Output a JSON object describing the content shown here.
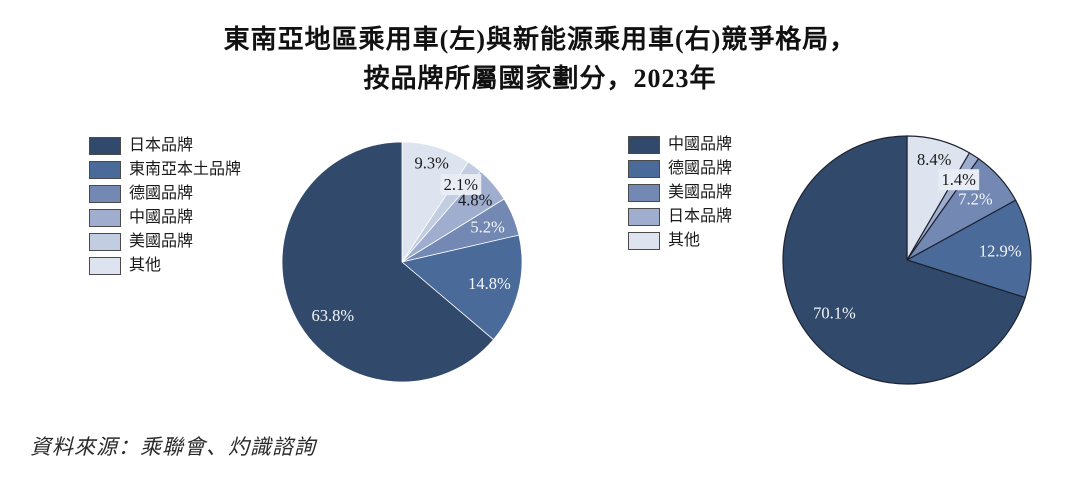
{
  "title": {
    "line1": "東南亞地區乘用車(左)與新能源乘用車(右)競爭格局，",
    "line2": "按品牌所屬國家劃分，2023年"
  },
  "source": {
    "text": "資料來源：乘聯會、灼識諮詢"
  },
  "palette": {
    "shade1_darkest": "#31496B",
    "shade2": "#4A6A99",
    "shade3": "#7388B3",
    "shade4": "#9FAECE",
    "shade5": "#C3CDE1",
    "shade6_lightest": "#DDE4EF",
    "label_box_bg": "#E8ECF5",
    "dark_label_text": "#1a1a1a",
    "light_label_text": "#F4F6FA"
  },
  "chart_data": [
    {
      "type": "pie",
      "name": "東南亞地區乘用車競爭格局，按品牌所屬國家劃分，2023年",
      "unit": "%",
      "start_angle": "12-oclock",
      "direction": "clockwise",
      "legend_position": "left",
      "legend_order": "reversed-slice-order",
      "radius": 120,
      "stroke": {
        "color": "#FFFFFF",
        "width": 0.8
      },
      "slices": [
        {
          "label": "其他",
          "value": 9.3,
          "text": "9.3%",
          "color": "#DDE4EF",
          "label_r": 0.86
        },
        {
          "label": "美國品牌",
          "value": 2.1,
          "text": "2.1%",
          "color": "#C3CDE1",
          "label_r": 0.81,
          "boxed": true
        },
        {
          "label": "中國品牌",
          "value": 4.8,
          "text": "4.8%",
          "color": "#9FAECE",
          "label_r": 0.8
        },
        {
          "label": "德國品牌",
          "value": 5.2,
          "text": "5.2%",
          "color": "#7388B3",
          "label_r": 0.77
        },
        {
          "label": "東南亞本土品牌",
          "value": 14.8,
          "text": "14.8%",
          "color": "#4A6A99",
          "label_r": 0.75
        },
        {
          "label": "日本品牌",
          "value": 63.8,
          "text": "63.8%",
          "color": "#31496B",
          "label_r": 0.73,
          "label_angle_offset": -13
        }
      ]
    },
    {
      "type": "pie",
      "name": "東南亞地區新能源乘用車競爭格局，按品牌所屬國家劃分，2023年",
      "unit": "%",
      "start_angle": "12-oclock",
      "direction": "clockwise",
      "legend_position": "left",
      "legend_order": "reversed-slice-order",
      "radius": 124,
      "stroke": {
        "color": "#1D2331",
        "width": 1.2
      },
      "slices": [
        {
          "label": "其他",
          "value": 8.4,
          "text": "8.4%",
          "color": "#DDE4EF",
          "label_r": 0.84
        },
        {
          "label": "日本品牌",
          "value": 1.4,
          "text": "1.4%",
          "color": "#9FAECE",
          "label_r": 0.77,
          "boxed": true
        },
        {
          "label": "美國品牌",
          "value": 7.2,
          "text": "7.2%",
          "color": "#7388B3",
          "label_r": 0.74
        },
        {
          "label": "德國品牌",
          "value": 12.9,
          "text": "12.9%",
          "color": "#4A6A99",
          "label_r": 0.755
        },
        {
          "label": "中國品牌",
          "value": 70.1,
          "text": "70.1%",
          "color": "#31496B",
          "label_r": 0.725
        }
      ]
    }
  ]
}
